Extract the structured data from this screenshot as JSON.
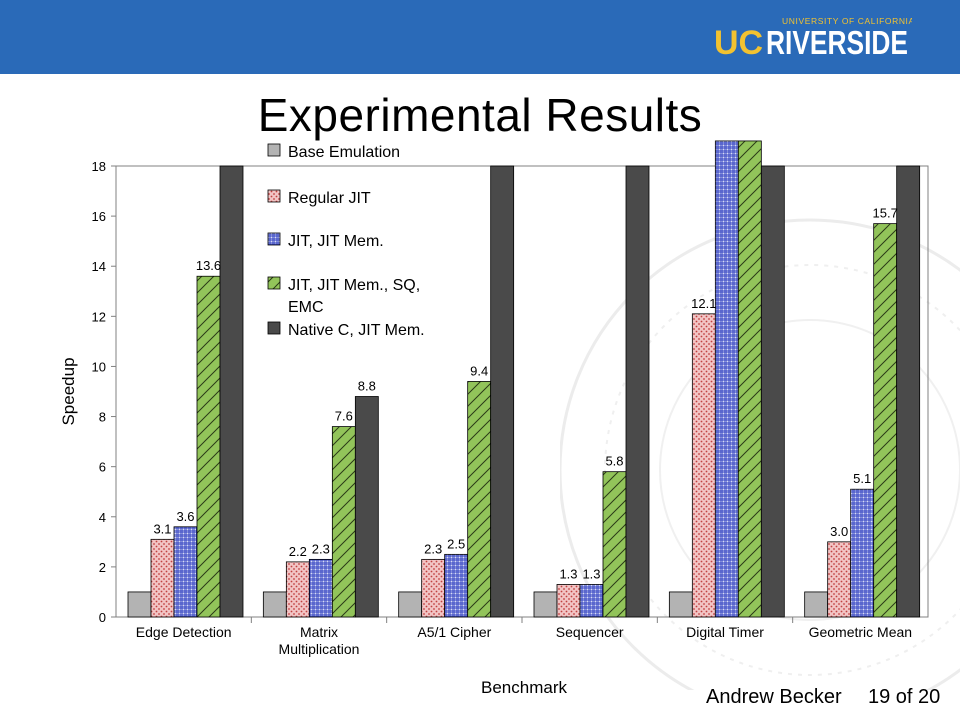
{
  "header": {
    "logo_text": "UC RIVERSIDE",
    "logo_uc": "UC",
    "logo_riverside": "RIVERSIDE",
    "logo_subtitle": "UNIVERSITY OF CALIFORNIA"
  },
  "slide": {
    "title": "Experimental Results"
  },
  "footer": {
    "author": "Andrew Becker",
    "page": "19 of 20"
  },
  "colors": {
    "header_bar": "#2a6ab8",
    "base": "#b3b3b3",
    "regular_jit": "#f0b8b8",
    "jit_mem": "#4050c8",
    "jit_sq_emc": "#92c45a",
    "native": "#4a4a4a"
  },
  "chart_data": {
    "type": "bar",
    "xlabel": "Benchmark",
    "ylabel": "Speedup",
    "ylim": [
      0,
      18
    ],
    "yticks": [
      0,
      2,
      4,
      6,
      8,
      10,
      12,
      14,
      16,
      18
    ],
    "grid": false,
    "legend_position": "top-left",
    "categories": [
      "Edge Detection",
      "Matrix Multiplication",
      "A5/1 Cipher",
      "Sequencer",
      "Digital Timer",
      "Geometric Mean"
    ],
    "category_lines": [
      [
        "Edge Detection"
      ],
      [
        "Matrix",
        "Multiplication"
      ],
      [
        "A5/1 Cipher"
      ],
      [
        "Sequencer"
      ],
      [
        "Digital Timer"
      ],
      [
        "Geometric Mean"
      ]
    ],
    "series": [
      {
        "name": "Base Emulation",
        "values": [
          1,
          1,
          1,
          1,
          1,
          1
        ],
        "labels": [
          "",
          "",
          "",
          "",
          "",
          ""
        ]
      },
      {
        "name": "Regular JIT",
        "values": [
          3.1,
          2.2,
          2.3,
          1.3,
          12.1,
          3.0
        ],
        "labels": [
          "3.1",
          "2.2",
          "2.3",
          "1.3",
          "12.1",
          "3.0"
        ]
      },
      {
        "name": "JIT, JIT Mem.",
        "values": [
          3.6,
          2.3,
          2.5,
          1.3,
          19,
          5.1
        ],
        "labels": [
          "3.6",
          "2.3",
          "2.5",
          "1.3",
          "",
          "5.1"
        ]
      },
      {
        "name": "JIT, JIT Mem., SQ, EMC",
        "legend_lines": [
          "JIT, JIT Mem., SQ,",
          "EMC"
        ],
        "values": [
          13.6,
          7.6,
          9.4,
          5.8,
          19,
          15.7
        ],
        "labels": [
          "13.6",
          "7.6",
          "9.4",
          "5.8",
          "",
          "15.7"
        ]
      },
      {
        "name": "Native C, JIT Mem.",
        "values": [
          18,
          8.8,
          18,
          18,
          18,
          18
        ],
        "labels": [
          "",
          "8.8",
          "",
          "",
          "",
          ""
        ]
      }
    ]
  }
}
